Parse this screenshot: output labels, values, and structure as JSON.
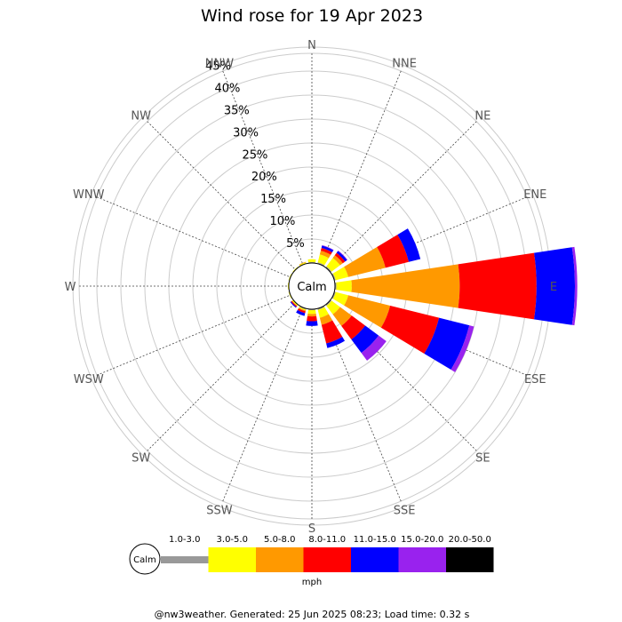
{
  "chart_data": {
    "type": "wind_rose",
    "title": "Wind rose for 19 Apr 2023",
    "directions": [
      "N",
      "NNE",
      "NE",
      "ENE",
      "E",
      "ESE",
      "SE",
      "SSE",
      "S",
      "SSW",
      "SW",
      "WSW",
      "W",
      "WNW",
      "NW",
      "NNW"
    ],
    "ring_labels": [
      "5%",
      "10%",
      "15%",
      "20%",
      "25%",
      "30%",
      "35%",
      "40%",
      "45%"
    ],
    "ring_values": [
      5,
      10,
      15,
      20,
      25,
      30,
      35,
      40,
      45
    ],
    "r_max": 50,
    "calm_label": "Calm",
    "unit_label": "mph",
    "speed_bins": [
      {
        "label": "1.0-3.0",
        "color": "#999999"
      },
      {
        "label": "3.0-5.0",
        "color": "#ffff00"
      },
      {
        "label": "5.0-8.0",
        "color": "#ff9900"
      },
      {
        "label": "8.0-11.0",
        "color": "#ff0000"
      },
      {
        "label": "11.0-15.0",
        "color": "#0000ff"
      },
      {
        "label": "15.0-20.0",
        "color": "#9922ee"
      },
      {
        "label": "20.0-50.0",
        "color": "#000000"
      }
    ],
    "frequencies_cumulative_percent": {
      "N": [
        0.2,
        0.8,
        0.8,
        0.8,
        0.8,
        0.8,
        0.8
      ],
      "NNE": [
        0.3,
        2.0,
        2.8,
        3.4,
        3.9,
        4.0,
        4.0
      ],
      "NE": [
        0.3,
        2.5,
        3.2,
        3.8,
        4.3,
        4.4,
        4.4
      ],
      "ENE": [
        0.3,
        3.0,
        11.0,
        16.0,
        18.5,
        18.5,
        18.5
      ],
      "E": [
        0.3,
        3.5,
        26.0,
        42.0,
        50.0,
        50.5,
        50.5
      ],
      "ESE": [
        0.3,
        3.0,
        12.0,
        22.5,
        29.0,
        30.0,
        30.0
      ],
      "SE": [
        0.3,
        2.5,
        5.5,
        9.0,
        12.5,
        14.5,
        14.5
      ],
      "SSE": [
        0.3,
        2.0,
        3.5,
        7.5,
        8.5,
        8.5,
        8.5
      ],
      "S": [
        0.2,
        1.0,
        1.5,
        2.5,
        3.5,
        3.5,
        3.5
      ],
      "SSW": [
        0.2,
        0.4,
        0.6,
        1.0,
        1.6,
        1.6,
        1.6
      ],
      "SW": [
        0.1,
        0.3,
        0.4,
        0.6,
        0.8,
        0.8,
        0.8
      ],
      "WSW": [
        0.1,
        0.2,
        0.2,
        0.2,
        0.2,
        0.2,
        0.2
      ],
      "W": [
        0.1,
        0.2,
        0.2,
        0.2,
        0.2,
        0.2,
        0.2
      ],
      "WNW": [
        0.1,
        0.2,
        0.2,
        0.2,
        0.2,
        0.2,
        0.2
      ],
      "NW": [
        0.1,
        0.2,
        0.2,
        0.2,
        0.2,
        0.2,
        0.2
      ],
      "NNW": [
        0.1,
        0.3,
        0.4,
        0.4,
        0.4,
        0.4,
        0.4
      ]
    },
    "grid": true
  },
  "footer": "@nw3weather. Generated: 25 Jun 2025 08:23; Load time: 0.32 s"
}
